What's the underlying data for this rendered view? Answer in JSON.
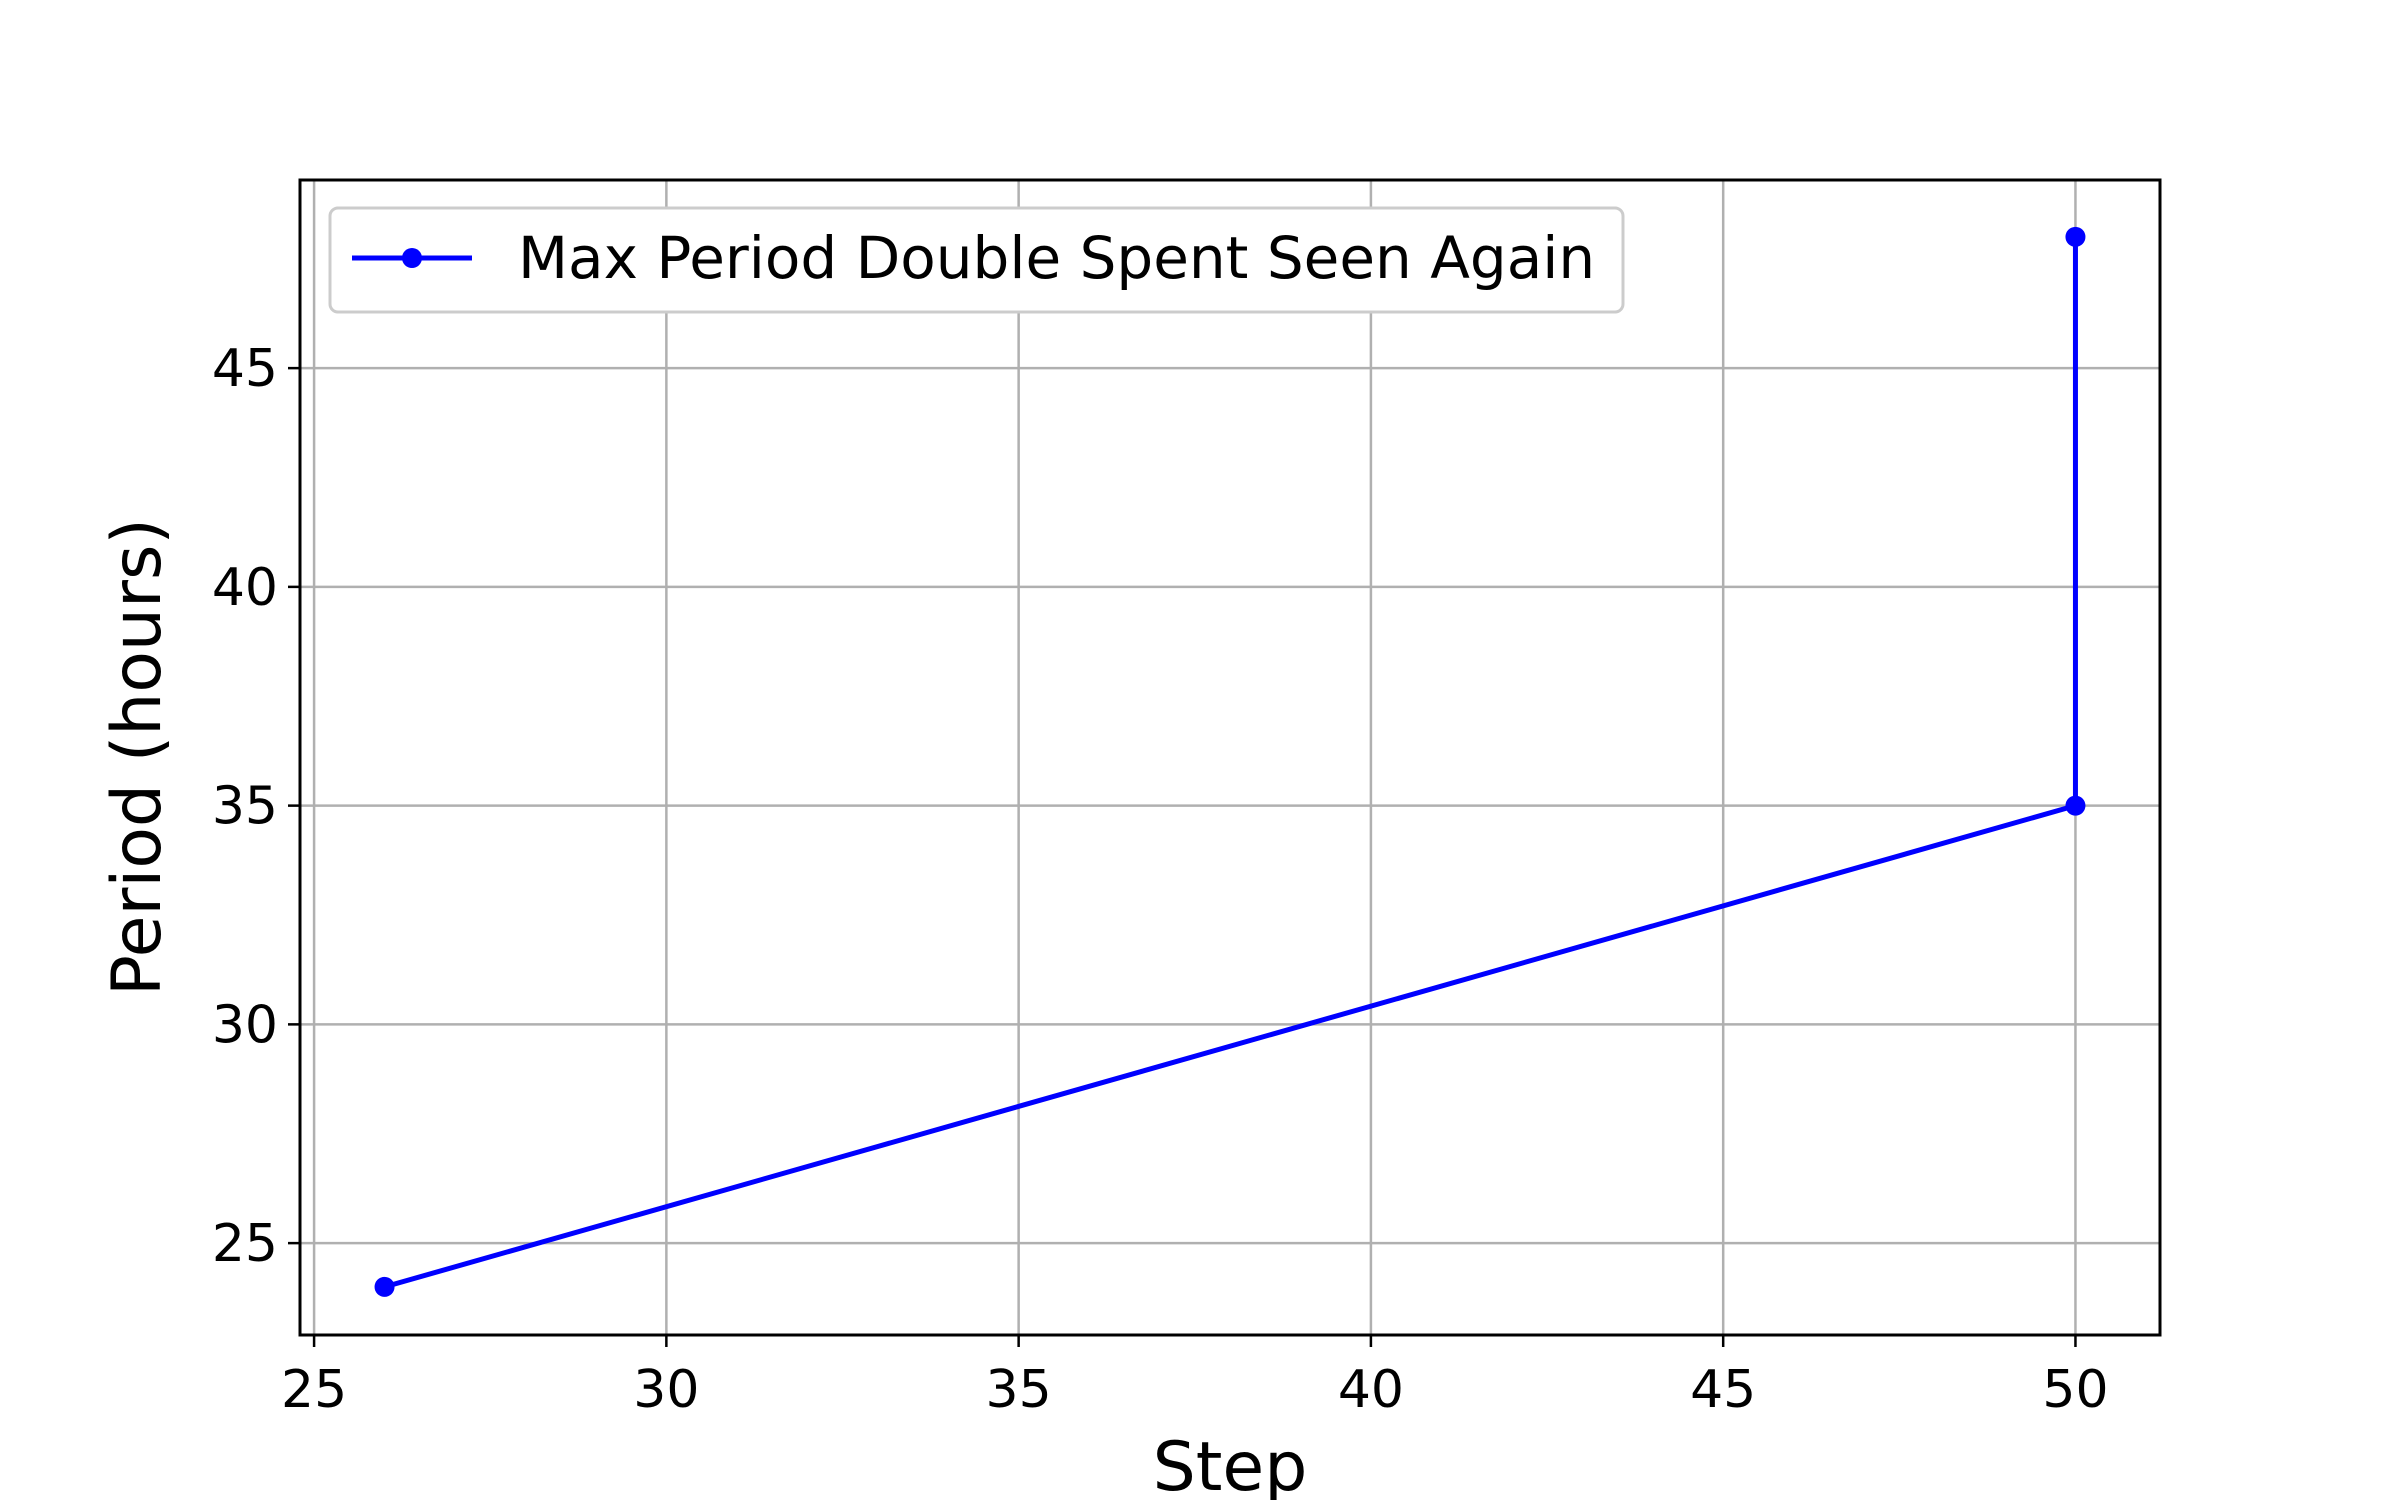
{
  "chart_data": {
    "type": "line",
    "title": "",
    "xlabel": "Step",
    "ylabel": "Period (hours)",
    "xlim": [
      24.8,
      51.2
    ],
    "ylim": [
      22.9,
      49.3
    ],
    "xticks": [
      25,
      30,
      35,
      40,
      45,
      50
    ],
    "yticks": [
      25,
      30,
      35,
      40,
      45
    ],
    "grid": true,
    "legend_position": "top-left",
    "series": [
      {
        "name": "Max Period Double Spent Seen Again",
        "color": "#0000ff",
        "marker": "circle",
        "points": [
          {
            "x": 26,
            "y": 24
          },
          {
            "x": 50,
            "y": 35
          },
          {
            "x": 50,
            "y": 48
          }
        ]
      }
    ]
  }
}
